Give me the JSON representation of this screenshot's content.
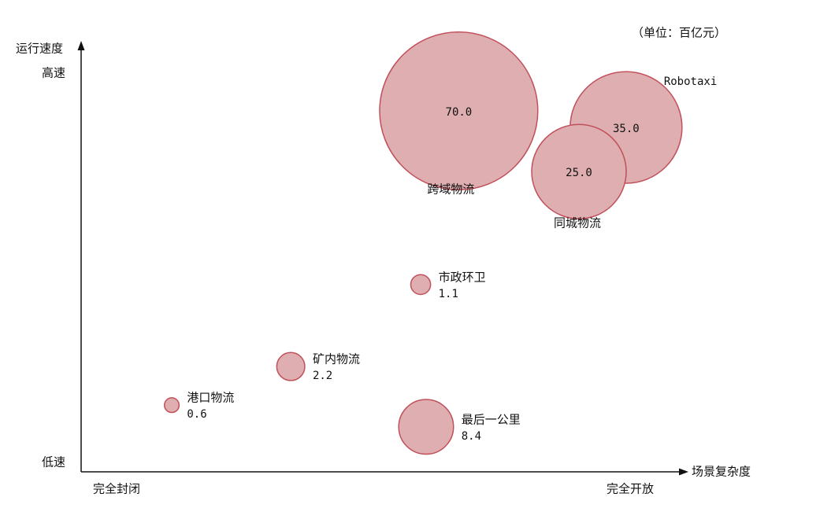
{
  "chart_data": {
    "type": "bubble",
    "unit_note": "（单位：百亿元）",
    "y_axis_label": "运行速度",
    "y_high_label": "高速",
    "y_low_label": "低速",
    "x_axis_label": "场景复杂度",
    "x_low_label": "完全封闭",
    "x_high_label": "完全开放",
    "xlim": [
      0,
      100
    ],
    "ylim": [
      0,
      100
    ],
    "categories": [
      "跨域物流",
      "Robotaxi",
      "同城物流",
      "市政环卫",
      "矿内物流",
      "港口物流",
      "最后一公里"
    ],
    "x": [
      62.5,
      90.2,
      82.4,
      56.2,
      34.7,
      15.0,
      57.1
    ],
    "y": [
      85,
      81.1,
      70.7,
      44.1,
      24.8,
      15.7,
      10.6
    ],
    "values": [
      70,
      35,
      25,
      1.1,
      2.2,
      0.6,
      8.4
    ],
    "value_labels": [
      "70.0",
      "35.0",
      "25.0",
      "1.1",
      "2.2",
      "0.6",
      "8.4"
    ],
    "color": "#dfaeb0",
    "edge_color": "#c0505a"
  }
}
